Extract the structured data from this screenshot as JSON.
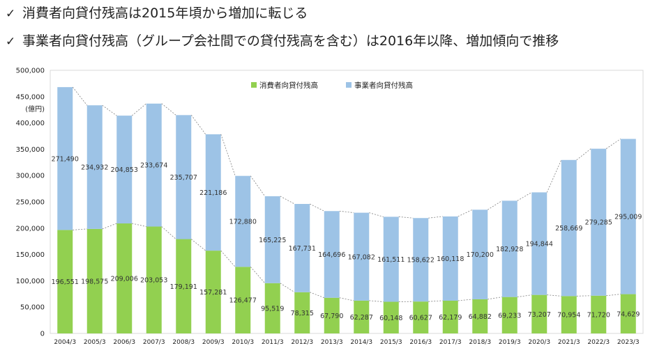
{
  "bullets": {
    "check": "✓",
    "line1": "消費者向貸付残高は2015年頃から増加に転じる",
    "line2": "事業者向貸付残高（グループ会社間での貸付残高を含む）は2016年以降、増加傾向で推移"
  },
  "chart_data": {
    "type": "bar",
    "stacked": true,
    "unit_label": "(億円)",
    "categories": [
      "2004/3",
      "2005/3",
      "2006/3",
      "2007/3",
      "2008/3",
      "2009/3",
      "2010/3",
      "2011/3",
      "2012/3",
      "2013/3",
      "2014/3",
      "2015/3",
      "2016/3",
      "2017/3",
      "2018/3",
      "2019/3",
      "2020/3",
      "2021/3",
      "2022/3",
      "2023/3"
    ],
    "series": [
      {
        "name": "消費者向貸付残高",
        "color": "#92d050",
        "values": [
          196551,
          198575,
          209006,
          203053,
          179191,
          157281,
          126477,
          95519,
          78315,
          67790,
          62287,
          60148,
          60627,
          62179,
          64882,
          69233,
          73207,
          70954,
          71720,
          74629
        ],
        "labels": [
          "196,551",
          "198,575",
          "209,006",
          "203,053",
          "179,191",
          "157,281",
          "126,477",
          "95,519",
          "78,315",
          "67,790",
          "62,287",
          "60,148",
          "60,627",
          "62,179",
          "64,882",
          "69,233",
          "73,207",
          "70,954",
          "71,720",
          "74,629"
        ]
      },
      {
        "name": "事業者向貸付残高",
        "color": "#9dc3e6",
        "values": [
          271490,
          234932,
          204853,
          233674,
          235707,
          221186,
          172880,
          165225,
          167731,
          164696,
          167082,
          161511,
          158622,
          160118,
          170200,
          182928,
          194844,
          258669,
          279285,
          295009
        ],
        "labels": [
          "271,490",
          "234,932",
          "204,853",
          "233,674",
          "235,707",
          "221,186",
          "172,880",
          "165,225",
          "167,731",
          "164,696",
          "167,082",
          "161,511",
          "158,622",
          "160,118",
          "170,200",
          "182,928",
          "194,844",
          "258,669",
          "279,285",
          "295,009"
        ]
      }
    ],
    "ylim": [
      0,
      500000
    ],
    "yticks": [
      0,
      50000,
      100000,
      150000,
      200000,
      250000,
      300000,
      350000,
      400000,
      450000,
      500000
    ],
    "ytick_labels": [
      "0",
      "50,000",
      "100,000",
      "150,000",
      "200,000",
      "250,000",
      "300,000",
      "350,000",
      "400,000",
      "450,000",
      "500,000"
    ],
    "legend": "top-center",
    "grid": false
  }
}
